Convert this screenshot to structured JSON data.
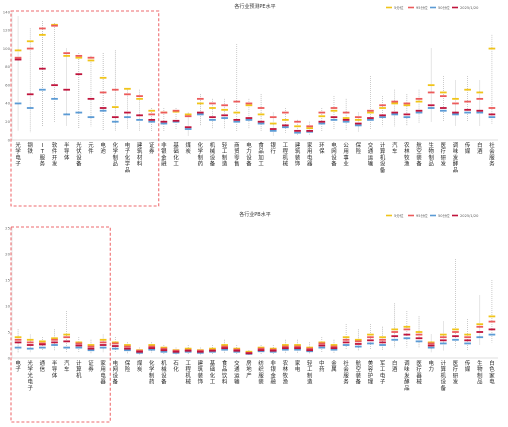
{
  "chart_data": [
    {
      "type": "scatter",
      "title": "各行业预测PE水平",
      "ylim": [
        0,
        140
      ],
      "yticks": [
        0,
        20,
        40,
        60,
        80,
        100,
        120,
        140
      ],
      "grid": false,
      "legend_position": "top-right",
      "legend": [
        {
          "name": "5分位",
          "color": "#f0c419",
          "shape": "dash"
        },
        {
          "name": "95分位",
          "color": "#ec5b5b",
          "shape": "dash"
        },
        {
          "name": "50分位",
          "color": "#5b9bd5",
          "shape": "dash"
        },
        {
          "name": "2025/1/20",
          "color": "#c0143c",
          "shape": "dash"
        }
      ],
      "highlight_box": {
        "from": 0,
        "to": 12
      },
      "categories": [
        "光学电子",
        "钢铁",
        "IT服务",
        "软件开发",
        "半导体",
        "光伏设备",
        "元件",
        "电池",
        "化学制品",
        "电子化学品",
        "建筑材料",
        "证券",
        "非银金融",
        "基础化工",
        "煤炭",
        "化学制药",
        "机械设备",
        "轻工制造",
        "商贸零售",
        "电力设备",
        "食品加工",
        "银行",
        "工程机械",
        "建筑装饰",
        "家用电器",
        "环保",
        "电网设备",
        "公用事业",
        "保险",
        "交通运输",
        "计算机设备",
        "汽车",
        "农林牧渔",
        "航空装备",
        "生物制品",
        "医疗研发",
        "调味发酵品",
        "传媒",
        "白酒",
        "社会服务"
      ],
      "series": [
        {
          "name": "5分位",
          "values": [
            98,
            108,
            115,
            126,
            92,
            90,
            87,
            68,
            36,
            56,
            45,
            32,
            30,
            31,
            28,
            40,
            35,
            33,
            30,
            38,
            28,
            18,
            22,
            15,
            13,
            26,
            32,
            24,
            22,
            30,
            35,
            40,
            38,
            42,
            60,
            52,
            45,
            55,
            52,
            100
          ]
        },
        {
          "name": "95分位",
          "values": [
            90,
            100,
            122,
            125,
            95,
            92,
            90,
            52,
            55,
            50,
            48,
            28,
            30,
            32,
            26,
            45,
            40,
            38,
            42,
            40,
            35,
            25,
            30,
            20,
            15,
            30,
            35,
            30,
            25,
            32,
            38,
            42,
            40,
            45,
            52,
            48,
            40,
            42,
            45,
            35
          ]
        },
        {
          "name": "50分位",
          "values": [
            40,
            35,
            55,
            45,
            28,
            30,
            25,
            32,
            20,
            25,
            22,
            20,
            18,
            20,
            12,
            28,
            22,
            24,
            20,
            22,
            18,
            10,
            14,
            8,
            9,
            18,
            22,
            20,
            16,
            22,
            25,
            28,
            25,
            30,
            35,
            32,
            28,
            30,
            30,
            25
          ]
        },
        {
          "name": "2025/1/20",
          "values": [
            88,
            50,
            78,
            60,
            55,
            72,
            45,
            35,
            25,
            30,
            27,
            22,
            20,
            21,
            14,
            30,
            25,
            27,
            22,
            24,
            20,
            12,
            16,
            10,
            10,
            20,
            25,
            22,
            18,
            24,
            27,
            30,
            28,
            32,
            38,
            35,
            30,
            33,
            32,
            28
          ]
        }
      ],
      "range_high": [
        135,
        122,
        130,
        128,
        100,
        95,
        92,
        95,
        98,
        55,
        55,
        35,
        35,
        35,
        30,
        50,
        45,
        45,
        105,
        45,
        50,
        30,
        35,
        22,
        20,
        35,
        48,
        45,
        30,
        70,
        48,
        55,
        50,
        55,
        100,
        70,
        65,
        70,
        65,
        115
      ],
      "range_low": [
        10,
        8,
        15,
        20,
        15,
        12,
        15,
        10,
        10,
        12,
        10,
        10,
        10,
        12,
        5,
        15,
        12,
        12,
        10,
        12,
        10,
        5,
        8,
        5,
        5,
        10,
        12,
        10,
        8,
        12,
        15,
        15,
        15,
        18,
        20,
        20,
        15,
        20,
        15,
        18
      ]
    },
    {
      "type": "scatter",
      "title": "各行业PB水平",
      "ylim": [
        0,
        25
      ],
      "yticks": [
        0,
        5,
        10,
        15,
        20,
        25
      ],
      "grid": false,
      "legend_position": "top-right",
      "legend": [
        {
          "name": "5分位",
          "color": "#f0c419",
          "shape": "dash"
        },
        {
          "name": "95分位",
          "color": "#ec5b5b",
          "shape": "dash"
        },
        {
          "name": "50分位",
          "color": "#5b9bd5",
          "shape": "dash"
        },
        {
          "name": "2025/1/20",
          "color": "#c0143c",
          "shape": "dash"
        }
      ],
      "highlight_box": {
        "from": 0,
        "to": 8
      },
      "categories": [
        "电子",
        "光学光电子",
        "通信",
        "半导体",
        "汽车",
        "计算机",
        "证券",
        "家用电器",
        "电网设备",
        "保险",
        "煤炭",
        "化学制药",
        "机械设备",
        "石化",
        "工程机械",
        "建筑装饰",
        "基础化工",
        "食品饮料",
        "交通运输",
        "房地产",
        "纺织服装",
        "非银金融",
        "农林牧渔",
        "家电",
        "轻工制造",
        "中药",
        "金属",
        "社会服务",
        "航空装备",
        "美容护理",
        "军工电子",
        "白酒",
        "调味发酵品",
        "医疗器械",
        "电力",
        "计算机设备",
        "医疗研发",
        "传媒",
        "生物制品",
        "白色家电"
      ],
      "series": [
        {
          "name": "5分位",
          "values": [
            4.0,
            3.5,
            3.2,
            3.8,
            4.5,
            3.0,
            2.5,
            3.5,
            3.0,
            2.5,
            1.5,
            2.5,
            2.0,
            1.5,
            1.8,
            1.5,
            1.8,
            2.5,
            1.8,
            1.2,
            2.0,
            1.8,
            2.5,
            2.5,
            2.0,
            3.0,
            2.5,
            4.0,
            3.5,
            4.5,
            4.0,
            5.5,
            6.0,
            5.0,
            3.0,
            4.5,
            5.5,
            4.5,
            6.5,
            8.0
          ]
        },
        {
          "name": "95分位",
          "values": [
            3.5,
            3.0,
            2.8,
            3.5,
            4.0,
            2.8,
            2.2,
            3.0,
            2.8,
            2.2,
            1.4,
            2.2,
            1.8,
            1.4,
            1.5,
            1.4,
            1.5,
            2.2,
            1.6,
            1.0,
            1.8,
            1.6,
            2.2,
            2.2,
            1.8,
            2.8,
            2.2,
            3.5,
            3.2,
            4.0,
            3.5,
            5.0,
            5.5,
            4.5,
            2.8,
            4.0,
            5.0,
            4.0,
            6.0,
            7.0
          ]
        },
        {
          "name": "50分位",
          "values": [
            2.0,
            1.8,
            2.0,
            2.5,
            2.0,
            2.0,
            1.5,
            2.0,
            1.8,
            1.5,
            1.0,
            1.6,
            1.2,
            1.0,
            1.2,
            1.0,
            1.2,
            1.6,
            1.2,
            0.8,
            1.3,
            1.2,
            1.6,
            1.6,
            1.3,
            2.0,
            1.6,
            2.5,
            2.2,
            2.8,
            2.5,
            3.5,
            3.8,
            3.2,
            2.0,
            2.8,
            3.5,
            2.8,
            4.0,
            4.5
          ]
        },
        {
          "name": "2025/1/20",
          "values": [
            3.0,
            2.5,
            2.6,
            3.0,
            3.2,
            2.4,
            1.8,
            2.5,
            2.3,
            1.8,
            1.2,
            1.9,
            1.5,
            1.2,
            1.4,
            1.2,
            1.4,
            1.9,
            1.4,
            0.9,
            1.5,
            1.4,
            1.9,
            1.9,
            1.5,
            2.4,
            1.9,
            3.0,
            2.7,
            3.4,
            3.0,
            4.2,
            4.5,
            3.8,
            2.4,
            3.4,
            4.2,
            3.4,
            5.0,
            5.5
          ]
        }
      ],
      "range_high": [
        5.5,
        4.5,
        4.0,
        5.5,
        9.0,
        4.0,
        3.5,
        4.5,
        4.0,
        3.0,
        2.0,
        3.0,
        2.5,
        2.0,
        2.5,
        2.0,
        2.5,
        3.5,
        2.5,
        1.5,
        2.5,
        2.5,
        3.5,
        3.5,
        3.0,
        4.0,
        3.5,
        6.5,
        5.5,
        6.5,
        6.0,
        10.5,
        9.0,
        8.0,
        4.5,
        7.0,
        19.0,
        7.5,
        12.0,
        15.0
      ],
      "range_low": [
        1.0,
        1.0,
        1.5,
        1.5,
        1.0,
        1.0,
        0.8,
        1.0,
        1.0,
        0.8,
        0.5,
        1.0,
        0.8,
        0.5,
        0.8,
        0.5,
        0.8,
        1.0,
        0.8,
        0.5,
        0.8,
        0.8,
        1.0,
        1.0,
        0.8,
        1.0,
        1.0,
        1.5,
        1.5,
        1.5,
        1.5,
        2.0,
        2.0,
        2.0,
        1.0,
        1.5,
        2.0,
        1.5,
        2.5,
        3.0
      ]
    }
  ]
}
